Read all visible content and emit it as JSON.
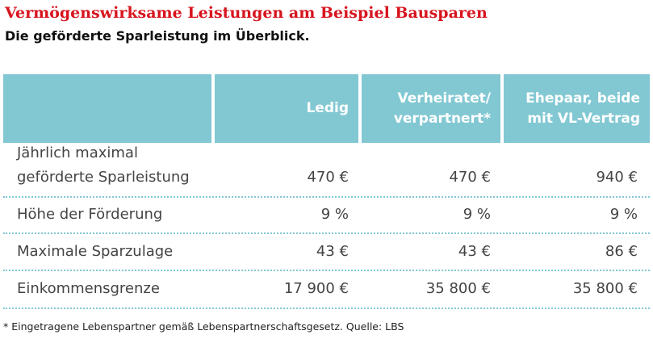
{
  "title": "Vermögenswirksame Leistungen am Beispiel Bausparen",
  "subtitle": "Die geförderte Sparleistung im Überblick.",
  "table": {
    "headers": [
      {
        "line1": "",
        "line2": ""
      },
      {
        "line1": "Ledig",
        "line2": ""
      },
      {
        "line1": "Verheiratet/",
        "line2": "verpartnert*"
      },
      {
        "line1": "Ehepaar, beide",
        "line2": "mit VL-Vertrag"
      }
    ],
    "rows": [
      {
        "label_line1": "Jährlich maximal",
        "label_line2": "geförderte Sparleistung",
        "values": [
          "470 €",
          "470 €",
          "940 €"
        ]
      },
      {
        "label_line1": "Höhe der Förderung",
        "label_line2": "",
        "values": [
          "9 %",
          "9 %",
          "9 %"
        ]
      },
      {
        "label_line1": "Maximale Sparzulage",
        "label_line2": "",
        "values": [
          "43 €",
          "43 €",
          "86 €"
        ]
      },
      {
        "label_line1": "Einkommensgrenze",
        "label_line2": "",
        "values": [
          "17 900 €",
          "35 800 €",
          "35 800 €"
        ]
      }
    ]
  },
  "footnote": "* Eingetragene Lebenspartner gemäß Lebenspartnerschaftsgesetz. Quelle: LBS",
  "colors": {
    "title": "#d7141e",
    "header_bg": "#82c8d3",
    "header_text": "#ffffff",
    "divider": "#82c8d3"
  }
}
